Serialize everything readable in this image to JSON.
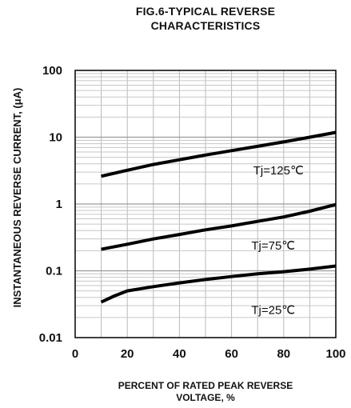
{
  "chart_data": {
    "type": "line",
    "title_lines": [
      "FIG.6-TYPICAL REVERSE",
      "CHARACTERISTICS"
    ],
    "xlabel_lines": [
      "PERCENT OF RATED PEAK REVERSE",
      "VOLTAGE, %"
    ],
    "ylabel": "INSTANTANEOUS REVERSE CURRENT, (μA)",
    "xlim": [
      0,
      100
    ],
    "ylim": [
      0.01,
      100
    ],
    "yscale": "log",
    "x_ticks": [
      "0",
      "20",
      "40",
      "60",
      "80",
      "100"
    ],
    "y_ticks": [
      "100",
      "10",
      "1",
      "0.1",
      "0.01"
    ],
    "grid": true,
    "series": [
      {
        "name": "Tj=125℃",
        "x": [
          10,
          20,
          30,
          40,
          50,
          60,
          70,
          80,
          90,
          100
        ],
        "y": [
          2.6,
          3.2,
          3.9,
          4.6,
          5.4,
          6.3,
          7.3,
          8.5,
          10,
          11.8
        ]
      },
      {
        "name": "Tj=75℃",
        "x": [
          10,
          20,
          30,
          40,
          50,
          60,
          70,
          80,
          90,
          100
        ],
        "y": [
          0.21,
          0.25,
          0.3,
          0.35,
          0.41,
          0.47,
          0.55,
          0.64,
          0.78,
          0.98
        ]
      },
      {
        "name": "Tj=25℃",
        "x": [
          10,
          15,
          20,
          30,
          40,
          50,
          60,
          70,
          80,
          90,
          100
        ],
        "y": [
          0.034,
          0.042,
          0.05,
          0.058,
          0.066,
          0.074,
          0.082,
          0.09,
          0.097,
          0.106,
          0.118
        ]
      }
    ]
  }
}
